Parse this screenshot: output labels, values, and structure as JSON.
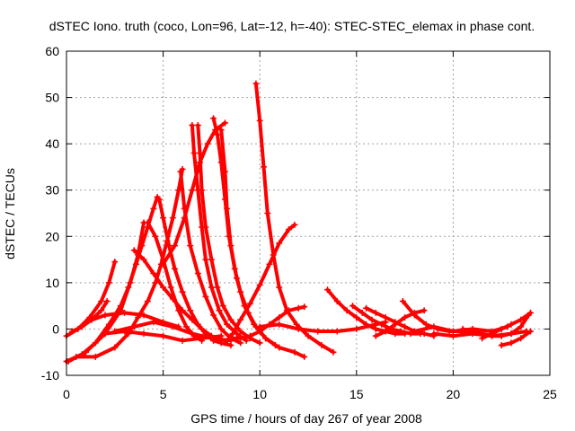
{
  "chart_data": {
    "type": "scatter",
    "title": "dSTEC Iono. truth (coco, Lon=96, Lat=-12, h=-40): STEC-STEC_elemax in phase cont.",
    "xlabel": "GPS time / hours of day 267 of year 2008",
    "ylabel": "dSTEC  / TECUs",
    "xlim": [
      0,
      25
    ],
    "ylim": [
      -10,
      60
    ],
    "xticks": [
      0,
      5,
      10,
      15,
      20,
      25
    ],
    "yticks": [
      -10,
      0,
      10,
      20,
      30,
      40,
      50,
      60
    ],
    "grid": true,
    "color": "#ff0000",
    "marker": "plus",
    "series": [
      {
        "x": [
          0.0,
          0.6,
          1.2,
          1.8,
          2.2,
          2.5
        ],
        "y": [
          -1.5,
          0.0,
          2.5,
          6.0,
          10.0,
          14.5
        ]
      },
      {
        "x": [
          0.3,
          0.8,
          1.3,
          1.8,
          2.1
        ],
        "y": [
          -0.5,
          0.5,
          2.0,
          4.0,
          6.0
        ]
      },
      {
        "x": [
          0.0,
          0.8,
          1.5,
          2.2,
          2.8,
          3.2,
          3.6,
          3.9,
          4.2,
          4.5,
          4.7
        ],
        "y": [
          -7.0,
          -5.5,
          -3.0,
          1.0,
          5.0,
          9.0,
          14.0,
          18.0,
          22.0,
          26.0,
          28.5
        ]
      },
      {
        "x": [
          0.1,
          1.0,
          2.0,
          2.8,
          3.3,
          3.7,
          4.0
        ],
        "y": [
          -7.0,
          -5.0,
          -1.0,
          4.0,
          10.0,
          16.0,
          23.0
        ]
      },
      {
        "x": [
          0.5,
          1.5,
          2.5,
          3.2,
          3.7,
          4.2,
          4.6,
          4.9,
          5.2,
          5.5,
          5.8,
          6.0
        ],
        "y": [
          -6.0,
          -6.0,
          -4.0,
          -1.0,
          2.5,
          6.0,
          10.0,
          14.0,
          19.0,
          24.0,
          30.0,
          34.5
        ]
      },
      {
        "x": [
          3.5,
          4.0,
          4.5,
          5.0,
          5.5,
          6.0,
          6.5,
          7.0,
          7.5,
          7.8
        ],
        "y": [
          17.0,
          15.0,
          12.0,
          9.0,
          6.5,
          4.0,
          2.0,
          0.0,
          -1.5,
          -2.0
        ]
      },
      {
        "x": [
          4.2,
          4.6,
          5.0,
          5.4,
          5.8,
          6.2,
          6.6,
          7.0
        ],
        "y": [
          23.0,
          20.0,
          15.0,
          9.0,
          4.0,
          0.5,
          -1.5,
          -2.5
        ]
      },
      {
        "x": [
          4.8,
          5.0,
          5.3,
          5.6,
          6.0,
          6.4,
          6.8,
          7.2,
          7.6,
          8.0,
          8.5
        ],
        "y": [
          28.0,
          24.0,
          18.0,
          13.0,
          8.0,
          4.0,
          1.0,
          -1.0,
          -2.5,
          -3.0,
          -3.5
        ]
      },
      {
        "x": [
          5.0,
          5.6,
          6.1,
          6.5,
          6.9,
          7.3,
          7.7,
          8.2
        ],
        "y": [
          14.0,
          18.0,
          24.0,
          30.0,
          36.0,
          40.0,
          43.0,
          44.5
        ]
      },
      {
        "x": [
          5.9,
          6.1,
          6.4,
          6.8,
          7.2,
          7.6,
          8.0,
          8.5,
          9.0
        ],
        "y": [
          34.0,
          26.0,
          18.0,
          12.0,
          7.0,
          3.0,
          0.0,
          -2.0,
          -3.0
        ]
      },
      {
        "x": [
          6.5,
          6.6,
          6.8,
          7.0,
          7.2,
          7.5,
          7.9,
          8.3,
          8.8,
          9.3
        ],
        "y": [
          44.0,
          38.0,
          30.0,
          22.0,
          15.0,
          9.0,
          4.0,
          1.0,
          -1.0,
          -2.5
        ]
      },
      {
        "x": [
          6.8,
          6.9,
          7.0,
          7.2,
          7.5,
          7.8,
          8.1,
          8.5,
          9.0,
          9.5,
          10.0
        ],
        "y": [
          44.0,
          38.0,
          30.0,
          22.0,
          15.0,
          9.0,
          5.0,
          2.0,
          -0.5,
          -2.0,
          -3.0
        ]
      },
      {
        "x": [
          7.6,
          7.8,
          8.0,
          8.2,
          8.4,
          8.7,
          9.0,
          9.4,
          9.8,
          10.3,
          10.8
        ],
        "y": [
          45.5,
          42.0,
          36.0,
          28.0,
          20.0,
          13.0,
          8.0,
          3.5,
          0.5,
          -2.0,
          -3.5
        ]
      },
      {
        "x": [
          8.0,
          8.2,
          8.3,
          8.5,
          8.8,
          9.2,
          9.7,
          10.3,
          11.0,
          11.8,
          12.3
        ],
        "y": [
          43.0,
          34.0,
          26.0,
          18.0,
          11.0,
          5.0,
          1.0,
          -2.0,
          -4.0,
          -5.0,
          -6.0
        ]
      },
      {
        "x": [
          9.8,
          10.0,
          10.2,
          10.4,
          10.7,
          11.0,
          11.4,
          11.9,
          12.5,
          13.2,
          13.8
        ],
        "y": [
          53.0,
          45.0,
          35.0,
          25.0,
          16.0,
          9.0,
          4.0,
          1.0,
          -1.5,
          -3.5,
          -5.0
        ]
      },
      {
        "x": [
          8.2,
          8.6,
          9.0,
          9.5,
          10.0,
          10.5,
          11.0,
          11.5,
          11.8
        ],
        "y": [
          -3.0,
          -1.0,
          2.0,
          5.5,
          9.5,
          14.0,
          18.5,
          21.5,
          22.5
        ]
      },
      {
        "x": [
          8.5,
          9.0,
          9.5,
          10.0,
          10.5,
          11.0,
          11.5,
          12.0,
          12.3
        ],
        "y": [
          -2.0,
          -2.0,
          -1.5,
          -0.5,
          1.0,
          2.5,
          4.0,
          4.5,
          4.8
        ]
      },
      {
        "x": [
          2.0,
          3.0,
          4.0,
          5.0,
          6.0,
          7.0,
          8.0
        ],
        "y": [
          -1.0,
          -0.5,
          -1.0,
          -1.5,
          -2.5,
          -2.0,
          -1.5
        ]
      },
      {
        "x": [
          1.0,
          2.0,
          3.0,
          4.0,
          5.0,
          5.8
        ],
        "y": [
          1.5,
          3.0,
          3.5,
          3.0,
          1.5,
          0.5
        ]
      },
      {
        "x": [
          2.5,
          3.5,
          4.5,
          5.5,
          6.5,
          7.5,
          8.5
        ],
        "y": [
          -0.5,
          0.5,
          1.5,
          0.5,
          -1.0,
          -2.0,
          -2.5
        ]
      },
      {
        "x": [
          10.0,
          11.0,
          12.0,
          13.0,
          14.0,
          15.0,
          16.0,
          16.5
        ],
        "y": [
          0.5,
          1.0,
          0.0,
          -0.5,
          -0.5,
          0.0,
          1.0,
          1.5
        ]
      },
      {
        "x": [
          13.5,
          14.0,
          14.5,
          15.0,
          15.5,
          16.0,
          16.5,
          17.0,
          17.5
        ],
        "y": [
          8.5,
          6.0,
          4.0,
          2.5,
          1.0,
          0.0,
          -0.5,
          -1.0,
          -1.0
        ]
      },
      {
        "x": [
          14.8,
          15.3,
          15.8,
          16.3,
          16.8,
          17.3,
          17.8,
          18.3
        ],
        "y": [
          5.0,
          3.5,
          2.0,
          1.0,
          0.0,
          -0.5,
          -1.0,
          -1.0
        ]
      },
      {
        "x": [
          15.5,
          16.0,
          16.5,
          17.0,
          17.5,
          18.0,
          18.5,
          19.0
        ],
        "y": [
          4.5,
          3.5,
          2.5,
          1.5,
          0.5,
          -0.5,
          -1.0,
          -1.5
        ]
      },
      {
        "x": [
          16.0,
          16.5,
          17.0,
          17.5,
          18.0,
          18.5
        ],
        "y": [
          -1.5,
          -0.5,
          1.0,
          2.5,
          3.5,
          4.0
        ]
      },
      {
        "x": [
          17.4,
          18.0,
          18.6,
          19.2,
          19.8,
          20.4,
          21.0
        ],
        "y": [
          6.0,
          3.0,
          1.0,
          0.0,
          -0.5,
          -0.5,
          -0.5
        ]
      },
      {
        "x": [
          18.0,
          19.0,
          20.0,
          21.0,
          22.0,
          22.8
        ],
        "y": [
          -0.5,
          0.5,
          -0.5,
          0.0,
          -0.5,
          0.5
        ]
      },
      {
        "x": [
          19.0,
          20.0,
          21.0,
          22.0,
          23.0,
          23.8
        ],
        "y": [
          -1.0,
          -1.5,
          -1.0,
          -1.5,
          -1.0,
          -0.5
        ]
      },
      {
        "x": [
          21.5,
          22.0,
          22.5,
          23.0,
          23.5,
          24.0
        ],
        "y": [
          -2.0,
          -1.0,
          0.0,
          1.0,
          2.0,
          3.5
        ]
      },
      {
        "x": [
          22.5,
          23.0,
          23.5,
          24.0
        ],
        "y": [
          -3.5,
          -3.0,
          -2.0,
          -0.5
        ]
      },
      {
        "x": [
          20.5,
          21.0,
          21.5,
          22.0,
          22.5,
          23.0,
          23.5,
          23.9
        ],
        "y": [
          0.0,
          -0.5,
          -1.0,
          -1.5,
          -1.5,
          -1.0,
          0.5,
          3.0
        ]
      }
    ]
  }
}
